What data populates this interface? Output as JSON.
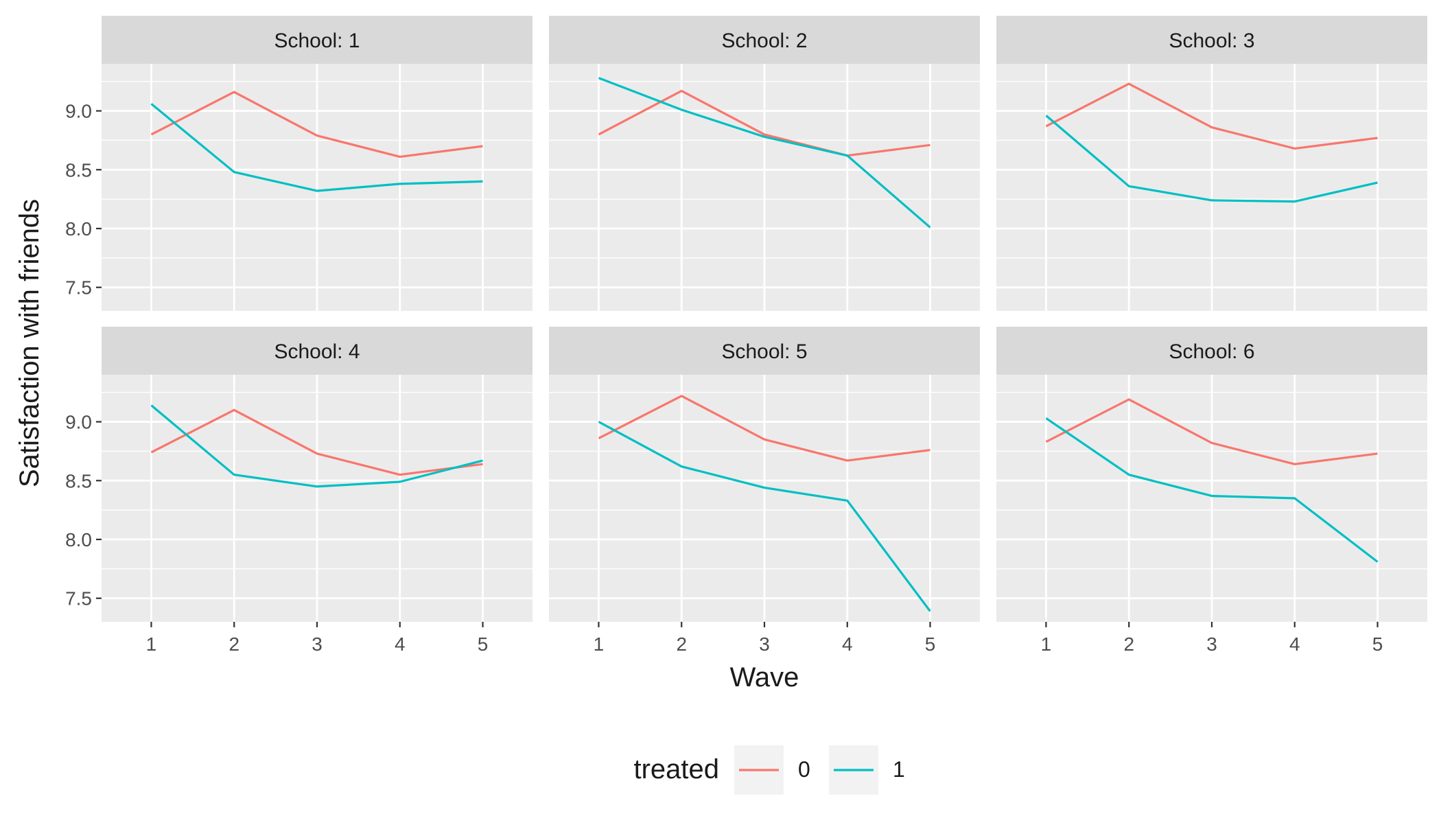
{
  "chart_data": {
    "type": "line",
    "ylabel": "Satisfaction with friends",
    "xlabel": "Wave",
    "x": [
      1,
      2,
      3,
      4,
      5
    ],
    "xticks": [
      "1",
      "2",
      "3",
      "4",
      "5"
    ],
    "yticks": [
      "7.5",
      "8.0",
      "8.5",
      "9.0"
    ],
    "ytick_values": [
      7.5,
      8.0,
      8.5,
      9.0
    ],
    "ylim": [
      7.3,
      9.4
    ],
    "xlim": [
      0.4,
      5.6
    ],
    "grid": true,
    "legend": {
      "title": "treated",
      "position": "bottom",
      "entries": [
        {
          "label": "0",
          "color": "#F8766D"
        },
        {
          "label": "1",
          "color": "#00BFC4"
        }
      ]
    },
    "panels": [
      {
        "strip": "School: 1",
        "series": [
          {
            "key": "0",
            "values": [
              8.8,
              9.16,
              8.79,
              8.61,
              8.7
            ]
          },
          {
            "key": "1",
            "values": [
              9.06,
              8.48,
              8.32,
              8.38,
              8.4
            ]
          }
        ]
      },
      {
        "strip": "School: 2",
        "series": [
          {
            "key": "0",
            "values": [
              8.8,
              9.17,
              8.8,
              8.62,
              8.71
            ]
          },
          {
            "key": "1",
            "values": [
              9.28,
              9.01,
              8.78,
              8.62,
              8.01
            ]
          }
        ]
      },
      {
        "strip": "School: 3",
        "series": [
          {
            "key": "0",
            "values": [
              8.87,
              9.23,
              8.86,
              8.68,
              8.77
            ]
          },
          {
            "key": "1",
            "values": [
              8.96,
              8.36,
              8.24,
              8.23,
              8.39
            ]
          }
        ]
      },
      {
        "strip": "School: 4",
        "series": [
          {
            "key": "0",
            "values": [
              8.74,
              9.1,
              8.73,
              8.55,
              8.64
            ]
          },
          {
            "key": "1",
            "values": [
              9.14,
              8.55,
              8.45,
              8.49,
              8.67
            ]
          }
        ]
      },
      {
        "strip": "School: 5",
        "series": [
          {
            "key": "0",
            "values": [
              8.86,
              9.22,
              8.85,
              8.67,
              8.76
            ]
          },
          {
            "key": "1",
            "values": [
              9.0,
              8.62,
              8.44,
              8.33,
              7.39
            ]
          }
        ]
      },
      {
        "strip": "School: 6",
        "series": [
          {
            "key": "0",
            "values": [
              8.83,
              9.19,
              8.82,
              8.64,
              8.73
            ]
          },
          {
            "key": "1",
            "values": [
              9.03,
              8.55,
              8.37,
              8.35,
              7.81
            ]
          }
        ]
      }
    ]
  },
  "colors": {
    "panel_bg": "#EBEBEB",
    "strip_bg": "#D9D9D9",
    "grid": "#FFFFFF",
    "axis_text": "#4D4D4D",
    "text": "#1A1A1A"
  }
}
